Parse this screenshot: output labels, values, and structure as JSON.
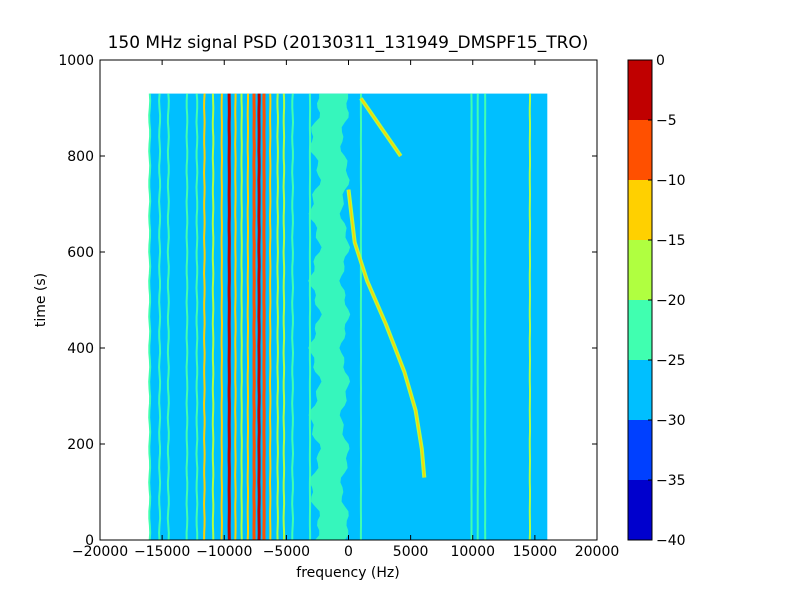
{
  "chart_data": {
    "type": "heatmap",
    "title": "150 MHz signal PSD (20130311_131949_DMSPF15_TRO)",
    "xlabel": "frequency (Hz)",
    "ylabel": "time (s)",
    "xlim": [
      -20000,
      20000
    ],
    "ylim": [
      0,
      1000
    ],
    "x_ticks": [
      -20000,
      -15000,
      -10000,
      -5000,
      0,
      5000,
      10000,
      15000,
      20000
    ],
    "y_ticks": [
      0,
      200,
      400,
      600,
      800,
      1000
    ],
    "data_extent": {
      "x": [
        -16000,
        16000
      ],
      "y": [
        0,
        930
      ]
    },
    "background_level": -28,
    "colorbar": {
      "range": [
        -40,
        0
      ],
      "ticks": [
        0,
        -5,
        -10,
        -15,
        -20,
        -25,
        -30,
        -35,
        -40
      ],
      "bins": [
        {
          "min": -40,
          "max": -35,
          "color": "#0000cd"
        },
        {
          "min": -35,
          "max": -30,
          "color": "#0040ff"
        },
        {
          "min": -30,
          "max": -25,
          "color": "#00bfff"
        },
        {
          "min": -25,
          "max": -20,
          "color": "#40ffb0"
        },
        {
          "min": -20,
          "max": -15,
          "color": "#b0ff40"
        },
        {
          "min": -15,
          "max": -10,
          "color": "#ffd000"
        },
        {
          "min": -10,
          "max": -5,
          "color": "#ff5000"
        },
        {
          "min": -5,
          "max": 0,
          "color": "#c00000"
        }
      ]
    },
    "features": {
      "vertical_lines": [
        {
          "f": -16000,
          "level": -22,
          "wobble": 40
        },
        {
          "f": -15200,
          "level": -22,
          "wobble": 40
        },
        {
          "f": -14500,
          "level": -22,
          "wobble": 40
        },
        {
          "f": -13000,
          "level": -22,
          "wobble": 30
        },
        {
          "f": -12200,
          "level": -20,
          "wobble": 30
        },
        {
          "f": -11600,
          "level": -14,
          "wobble": 20
        },
        {
          "f": -10900,
          "level": -18,
          "wobble": 20
        },
        {
          "f": -10200,
          "level": -12,
          "wobble": 15
        },
        {
          "f": -9600,
          "level": -3,
          "wobble": 10
        },
        {
          "f": -9100,
          "level": -13,
          "wobble": 15
        },
        {
          "f": -8600,
          "level": -15,
          "wobble": 15
        },
        {
          "f": -8100,
          "level": -11,
          "wobble": 15
        },
        {
          "f": -7600,
          "level": -7,
          "wobble": 10
        },
        {
          "f": -7200,
          "level": -3,
          "wobble": 10
        },
        {
          "f": -6800,
          "level": -9,
          "wobble": 10
        },
        {
          "f": -6300,
          "level": -14,
          "wobble": 15
        },
        {
          "f": -5700,
          "level": -16,
          "wobble": 20
        },
        {
          "f": -5200,
          "level": -18,
          "wobble": 20
        },
        {
          "f": -4500,
          "level": -22,
          "wobble": 30
        },
        {
          "f": -3100,
          "level": -20,
          "wobble": 10
        },
        {
          "f": 1000,
          "level": -22,
          "wobble": 5
        },
        {
          "f": 9900,
          "level": -22,
          "wobble": 5
        },
        {
          "f": 10400,
          "level": -22,
          "wobble": 5
        },
        {
          "f": 11000,
          "level": -23,
          "wobble": 5
        },
        {
          "f": 14600,
          "level": -17,
          "wobble": 10
        }
      ],
      "wavy_band": {
        "center_f": -1500,
        "width_hz": 2400,
        "level": -22
      },
      "drifting_tone": [
        [
          0,
          730
        ],
        [
          500,
          620
        ],
        [
          1500,
          540
        ],
        [
          3000,
          450
        ],
        [
          4500,
          350
        ],
        [
          5400,
          270
        ],
        [
          5900,
          190
        ],
        [
          6100,
          130
        ]
      ],
      "drifting_tone_upper": [
        [
          1000,
          920
        ],
        [
          4200,
          800
        ]
      ]
    }
  }
}
